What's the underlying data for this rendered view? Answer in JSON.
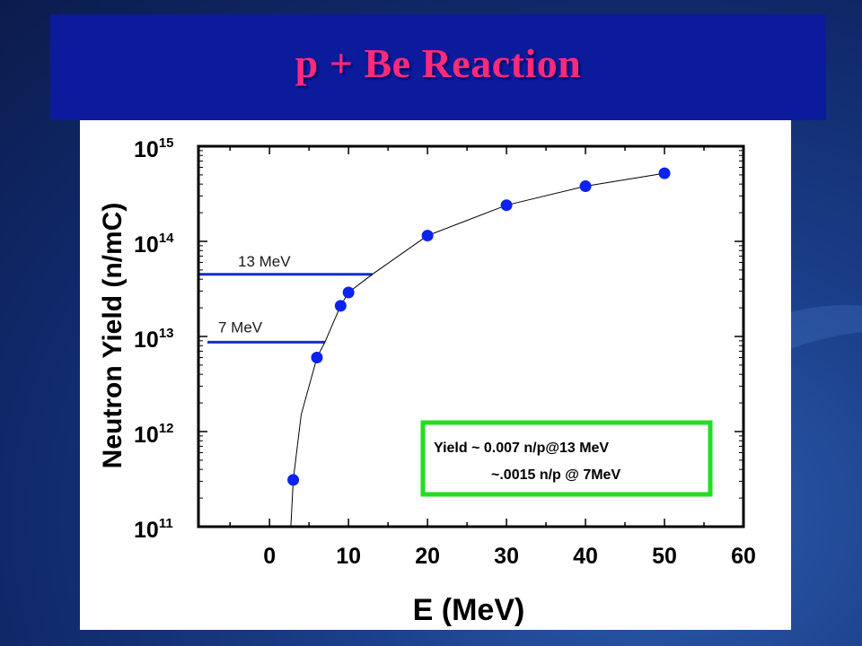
{
  "slide": {
    "title": "p + Be Reaction"
  },
  "colors": {
    "title": "#ff2a7a",
    "title_bar": "#0c1a9c",
    "marker": "#0b22f0",
    "ref_line": "#1430c8",
    "box_border": "#22dd22"
  },
  "chart_data": {
    "type": "scatter",
    "xlabel": "E (MeV)",
    "ylabel": "Neutron Yield (n/mC)",
    "xlim": [
      -9,
      60
    ],
    "ylim": [
      100000000000.0,
      1000000000000000.0
    ],
    "yscale": "log",
    "x_ticks": [
      0,
      10,
      20,
      30,
      40,
      50,
      60
    ],
    "y_ticks": [
      {
        "value": 100000000000.0,
        "base": "10",
        "exp": "11"
      },
      {
        "value": 1000000000000.0,
        "base": "10",
        "exp": "12"
      },
      {
        "value": 10000000000000.0,
        "base": "10",
        "exp": "13"
      },
      {
        "value": 100000000000000.0,
        "base": "10",
        "exp": "14"
      },
      {
        "value": 1000000000000000.0,
        "base": "10",
        "exp": "15"
      }
    ],
    "series": [
      {
        "x": [
          3,
          6,
          9,
          10,
          20,
          30,
          40,
          50
        ],
        "y": [
          310000000000.0,
          6000000000000.0,
          21000000000000.0,
          29000000000000.0,
          115000000000000.0,
          240000000000000.0,
          380000000000000.0,
          520000000000000.0
        ]
      }
    ],
    "fit_curve": {
      "x": [
        2.7,
        3,
        4,
        6,
        7,
        9,
        10,
        13,
        20,
        30,
        40,
        50
      ],
      "y": [
        100000000000.0,
        310000000000.0,
        1500000000000.0,
        6000000000000.0,
        8700000000000.0,
        21000000000000.0,
        29000000000000.0,
        45000000000000.0,
        115000000000000.0,
        240000000000000.0,
        380000000000000.0,
        520000000000000.0
      ]
    },
    "reference_lines": [
      {
        "label": "13 MeV",
        "x_end": 13,
        "y": 45000000000000.0
      },
      {
        "label": "7 MeV",
        "x_end": 7,
        "y": 8700000000000.0
      }
    ],
    "annotation": {
      "line1": "Yield ~ 0.007 n/p@13 MeV",
      "line2": "~.0015 n/p @ 7MeV"
    },
    "grid": false,
    "legend": "none"
  }
}
